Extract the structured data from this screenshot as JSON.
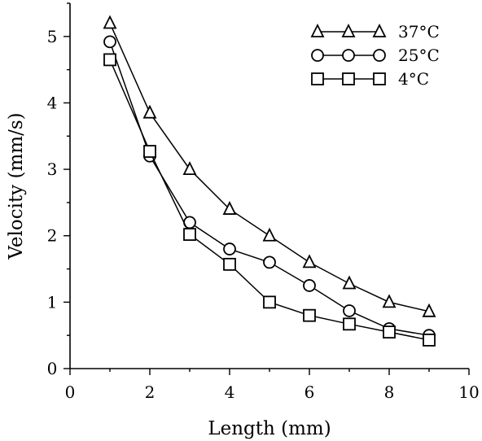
{
  "chart_data": {
    "type": "line",
    "title": "",
    "xlabel": "Length (mm)",
    "ylabel": "Velocity (mm/s)",
    "xlim": [
      0,
      10
    ],
    "ylim": [
      0,
      5.5
    ],
    "xticks": [
      0,
      2,
      4,
      6,
      8,
      10
    ],
    "yticks": [
      0,
      1,
      2,
      3,
      4,
      5
    ],
    "grid": false,
    "legend_position": "top-right",
    "x": [
      1,
      2,
      3,
      4,
      5,
      6,
      7,
      8,
      9
    ],
    "series": [
      {
        "name": "37°C",
        "marker": "triangle",
        "values": [
          5.2,
          3.85,
          3.0,
          2.4,
          2.0,
          1.6,
          1.28,
          1.0,
          0.86
        ]
      },
      {
        "name": "25°C",
        "marker": "circle",
        "values": [
          4.92,
          3.2,
          2.2,
          1.8,
          1.6,
          1.25,
          0.87,
          0.6,
          0.5
        ]
      },
      {
        "name": "4°C",
        "marker": "square",
        "values": [
          4.65,
          3.27,
          2.02,
          1.57,
          1.0,
          0.8,
          0.67,
          0.55,
          0.43
        ]
      }
    ]
  }
}
